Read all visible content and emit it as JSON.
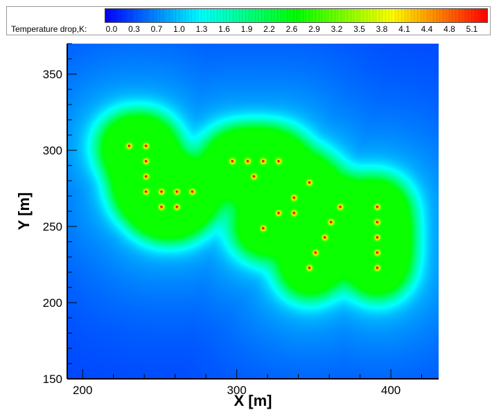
{
  "chart_data": {
    "type": "heatmap",
    "title": "",
    "xlabel": "X  [m]",
    "ylabel": "Y  [m]",
    "xlim": [
      190,
      431
    ],
    "ylim": [
      150,
      370
    ],
    "xticks": [
      200,
      300,
      400
    ],
    "yticks": [
      150,
      200,
      250,
      300,
      350
    ],
    "grid": false,
    "colorbar": {
      "title": "Temperature drop,K:",
      "ticks": [
        "0.0",
        "0.3",
        "0.7",
        "1.0",
        "1.3",
        "1.6",
        "1.9",
        "2.2",
        "2.6",
        "2.9",
        "3.2",
        "3.5",
        "3.8",
        "4.1",
        "4.4",
        "4.8",
        "5.1"
      ],
      "range": [
        0.0,
        5.3
      ],
      "colormap": "rainbow blue-cyan-green-yellow-red",
      "placement": "top"
    },
    "wells": [
      [
        230,
        303
      ],
      [
        241,
        303
      ],
      [
        241,
        293
      ],
      [
        241,
        283
      ],
      [
        241,
        273
      ],
      [
        251,
        273
      ],
      [
        261,
        273
      ],
      [
        271,
        273
      ],
      [
        251,
        263
      ],
      [
        261,
        263
      ],
      [
        297,
        293
      ],
      [
        307,
        293
      ],
      [
        317,
        293
      ],
      [
        327,
        293
      ],
      [
        311,
        283
      ],
      [
        347,
        279
      ],
      [
        337,
        269
      ],
      [
        337,
        259
      ],
      [
        327,
        259
      ],
      [
        367,
        263
      ],
      [
        361,
        253
      ],
      [
        357,
        243
      ],
      [
        317,
        249
      ],
      [
        351,
        233
      ],
      [
        347,
        223
      ],
      [
        391,
        263
      ],
      [
        391,
        253
      ],
      [
        391,
        243
      ],
      [
        391,
        233
      ],
      [
        391,
        223
      ]
    ],
    "well_peak_value": 5.0,
    "plateau_value": 2.5,
    "background_value": 0.3
  }
}
